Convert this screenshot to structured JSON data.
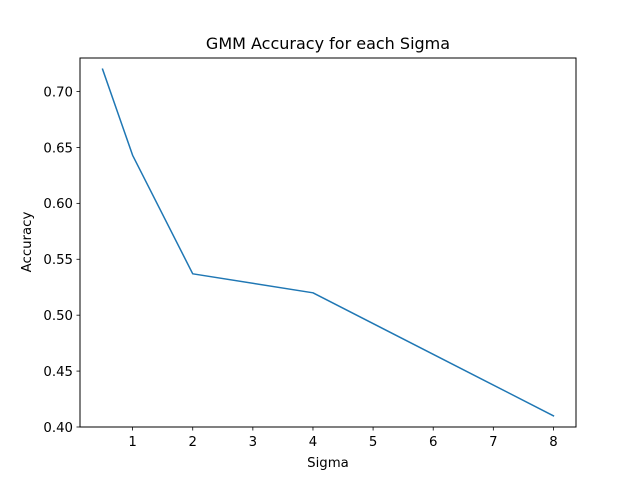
{
  "chart_data": {
    "type": "line",
    "title": "GMM Accuracy for each Sigma",
    "xlabel": "Sigma",
    "ylabel": "Accuracy",
    "x": [
      0.5,
      1,
      2,
      4,
      8
    ],
    "series": [
      {
        "values": [
          0.72,
          0.643,
          0.537,
          0.52,
          0.41
        ],
        "color": "#1f77b4"
      }
    ],
    "xlim": [
      0.125,
      8.375
    ],
    "ylim": [
      0.4,
      0.73
    ],
    "xticks": [
      1,
      2,
      3,
      4,
      5,
      6,
      7,
      8
    ],
    "xtick_labels": [
      "1",
      "2",
      "3",
      "4",
      "5",
      "6",
      "7",
      "8"
    ],
    "yticks": [
      0.4,
      0.45,
      0.5,
      0.55,
      0.6,
      0.65,
      0.7
    ],
    "ytick_labels": [
      "0.40",
      "0.45",
      "0.50",
      "0.55",
      "0.60",
      "0.65",
      "0.70"
    ],
    "grid": false,
    "legend": "none"
  }
}
